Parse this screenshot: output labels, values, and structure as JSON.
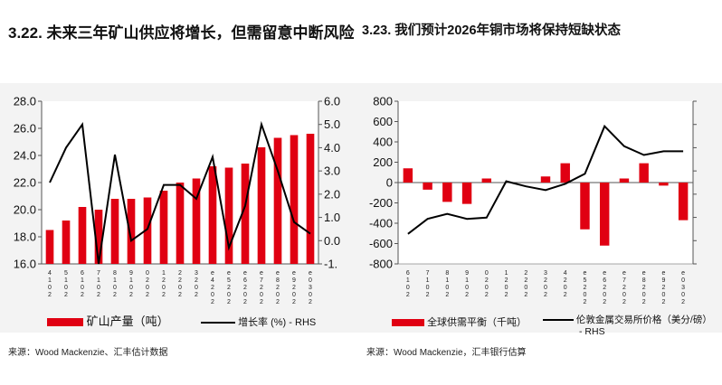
{
  "colors": {
    "bar": "#e00012",
    "line": "#000000",
    "band": "#f3f3f3",
    "axis": "#555555"
  },
  "left_panel": {
    "title": "3.22. 未来三年矿山供应将增长，但需留意中断风险",
    "source": "来源：Wood Mackenzie、汇丰估计数据",
    "legend_bar": "矿山产量（吨）",
    "legend_line": "增长率 (%) - RHS"
  },
  "right_panel": {
    "title": "3.23. 我们预计2026年铜市场将保持短缺状态",
    "source": "来源：Wood Mackenzie，汇丰银行估算",
    "legend_bar": "全球供需平衡（千吨）",
    "legend_line_1": "伦敦金属交易所价格（美分/磅）",
    "legend_line_2": "- RHS"
  },
  "chart_data": [
    {
      "type": "bar",
      "categories": [
        "2014",
        "2015",
        "2016",
        "2017",
        "2018",
        "2019",
        "2020",
        "2021",
        "2022",
        "2023",
        "2024",
        "2025",
        "2026",
        "2027",
        "2028",
        "2029",
        "2030"
      ],
      "xtick_labels": [
        "4\n1\n0\n2",
        "5\n1\n0\n2",
        "6\n1\n0\n2",
        "7\n1\n0\n2",
        "8\n1\n0\n2",
        "9\n1\n0\n2",
        "0\n2\n0\n2",
        "1\n2\n0\n2",
        "2\n2\n0\n2",
        "3\n2\n0\n2",
        "e\n4\n2\n0\n2",
        "e\n5\n2\n0\n2",
        "e\n6\n2\n0\n2",
        "e\n7\n2\n0\n2",
        "e\n8\n2\n0\n2",
        "e\n9\n2\n0\n2",
        "e\n0\n3\n0\n2"
      ],
      "series": [
        {
          "name": "矿山产量（吨）",
          "axis": "left",
          "kind": "bar",
          "values": [
            18.5,
            19.2,
            20.2,
            20.0,
            20.8,
            20.8,
            20.9,
            21.4,
            22.0,
            22.3,
            23.2,
            23.1,
            23.4,
            24.6,
            25.3,
            25.5,
            25.6
          ]
        },
        {
          "name": "增长率 (%) - RHS",
          "axis": "right",
          "kind": "line",
          "values": [
            2.5,
            4.0,
            5.0,
            -1.0,
            3.7,
            0.0,
            0.5,
            2.4,
            2.4,
            1.8,
            3.6,
            -0.3,
            1.5,
            5.0,
            3.0,
            0.8,
            0.3
          ]
        }
      ],
      "ylim": [
        16.0,
        28.0
      ],
      "yticks": [
        "16.0",
        "18.0",
        "20.0",
        "22.0",
        "24.0",
        "26.0",
        "28.0"
      ],
      "y2lim": [
        -1.0,
        6.0
      ],
      "y2ticks": [
        "-1.",
        "0.0",
        "1.0",
        "2.0",
        "3.0",
        "4.0",
        "5.0",
        "6.0"
      ],
      "title": "",
      "xlabel": "",
      "ylabel": "",
      "legend": "bottom"
    },
    {
      "type": "bar",
      "categories": [
        "2016",
        "2017",
        "2018",
        "2019",
        "2020",
        "2021",
        "2022",
        "2023",
        "2024",
        "2025",
        "2026",
        "2027",
        "2028",
        "2029",
        "2030"
      ],
      "xtick_labels": [
        "6\n1\n0\n2",
        "7\n1\n0\n2",
        "8\n1\n0\n2",
        "9\n1\n0\n2",
        "0\n2\n0\n2",
        "1\n2\n0\n2",
        "2\n2\n0\n2",
        "3\n2\n0\n2",
        "4\n2\n0\n2",
        "e\n5\n2\n0\n2",
        "e\n6\n2\n0\n2",
        "e\n7\n2\n0\n2",
        "e\n8\n2\n0\n2",
        "e\n9\n2\n0\n2",
        "e\n0\n3\n0\n2"
      ],
      "series": [
        {
          "name": "全球供需平衡（千吨）",
          "axis": "left",
          "kind": "bar",
          "values": [
            140,
            -70,
            -190,
            -210,
            40,
            0,
            0,
            60,
            190,
            -460,
            -620,
            40,
            190,
            -30,
            -370
          ]
        },
        {
          "name": "伦敦金属交易所价格（美分/磅） - RHS",
          "axis": "right",
          "kind": "line",
          "values": [
            220,
            280,
            300,
            280,
            285,
            430,
            410,
            395,
            420,
            460,
            650,
            570,
            535,
            550,
            550
          ]
        }
      ],
      "ylim": [
        -800,
        800
      ],
      "yticks": [
        "-800",
        "-600",
        "-400",
        "-200",
        "0",
        "200",
        "400",
        "600",
        "800"
      ],
      "y2lim": [
        100,
        750
      ],
      "title": "",
      "xlabel": "",
      "ylabel": "",
      "legend": "bottom"
    }
  ]
}
